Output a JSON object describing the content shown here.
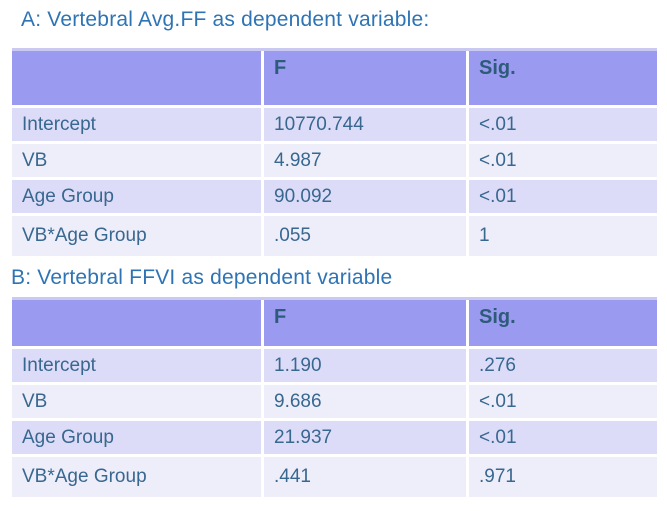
{
  "colors": {
    "page_background": "#ffffff",
    "header_background": "#9A9AF0",
    "table_top_border": "#C9C9F2",
    "row_odd_background": "#DCDCF8",
    "row_even_background": "#EEEEFA",
    "header_text": "#2E5B7A",
    "cell_text": "#38678F",
    "title_text": "#2E74B5"
  },
  "sections": [
    {
      "id": "A",
      "title": "A: Vertebral Avg.FF as dependent variable:",
      "table": {
        "columns": [
          "",
          "F",
          "Sig."
        ],
        "rows": [
          {
            "label": "Intercept",
            "f": "10770.744",
            "sig": "<.01"
          },
          {
            "label": "VB",
            "f": "4.987",
            "sig": "<.01"
          },
          {
            "label": "Age Group",
            "f": "90.092",
            "sig": "<.01"
          },
          {
            "label": "VB*Age Group",
            "f": ".055",
            "sig": "1"
          }
        ]
      }
    },
    {
      "id": "B",
      "title": "B: Vertebral FFVI as dependent variable",
      "table": {
        "columns": [
          "",
          "F",
          "Sig."
        ],
        "rows": [
          {
            "label": "Intercept",
            "f": "1.190",
            "sig": ".276"
          },
          {
            "label": "VB",
            "f": "9.686",
            "sig": "<.01"
          },
          {
            "label": "Age Group",
            "f": "21.937",
            "sig": "<.01"
          },
          {
            "label": "VB*Age Group",
            "f": ".441",
            "sig": ".971"
          }
        ]
      }
    }
  ]
}
